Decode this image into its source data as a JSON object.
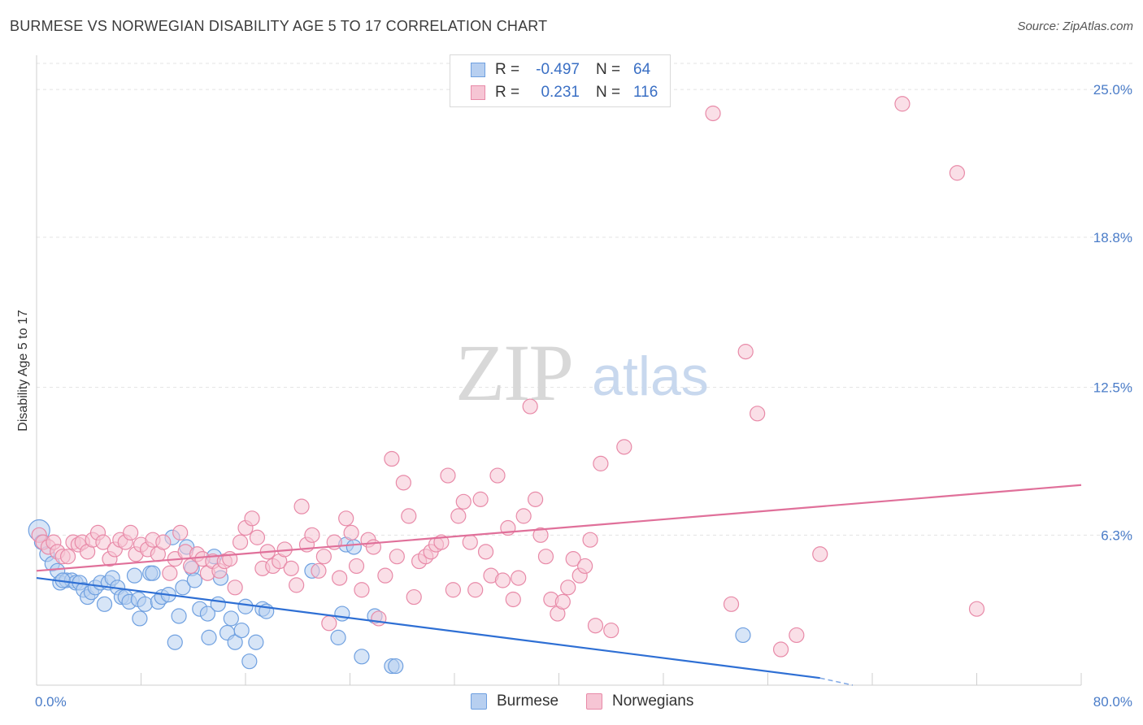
{
  "title": "BURMESE VS NORWEGIAN DISABILITY AGE 5 TO 17 CORRELATION CHART",
  "source": "Source: ZipAtlas.com",
  "watermark": {
    "zip": "ZIP",
    "atlas": "atlas"
  },
  "legend": {
    "rows": [
      {
        "r_label": "R =",
        "r_value": "-0.497",
        "n_label": "N =",
        "n_value": "64",
        "color": "#6fa0e0",
        "fill": "#b7cff0"
      },
      {
        "r_label": "R =",
        "r_value": "0.231",
        "n_label": "N =",
        "n_value": "116",
        "color": "#e88aa8",
        "fill": "#f6c5d4"
      }
    ]
  },
  "bottom_legend": [
    {
      "label": "Burmese",
      "color": "#6fa0e0",
      "fill": "#b7cff0"
    },
    {
      "label": "Norwegians",
      "color": "#e88aa8",
      "fill": "#f6c5d4"
    }
  ],
  "chart_data": {
    "type": "scatter",
    "title": "BURMESE VS NORWEGIAN DISABILITY AGE 5 TO 17 CORRELATION CHART",
    "xlabel": "",
    "ylabel": "Disability Age 5 to 17",
    "xlim": [
      0,
      80
    ],
    "ylim": [
      0,
      26.2
    ],
    "x_tick_labels": [
      "0.0%",
      "80.0%"
    ],
    "y_ticks": [
      6.3,
      12.5,
      18.8,
      25.0
    ],
    "y_tick_labels": [
      "6.3%",
      "12.5%",
      "18.8%",
      "25.0%"
    ],
    "grid": "horizontal dashed",
    "legend_position": "top-center",
    "series": [
      {
        "name": "Burmese",
        "color": "#6fa0e0",
        "fill": "#b7cff0",
        "trend": {
          "x": [
            0,
            60.0
          ],
          "y": [
            4.5,
            0.3
          ],
          "color": "#2e6fd4"
        },
        "points": [
          [
            0.2,
            6.5
          ],
          [
            0.4,
            6.0
          ],
          [
            0.8,
            5.5
          ],
          [
            1.2,
            5.1
          ],
          [
            1.6,
            4.8
          ],
          [
            1.8,
            4.3
          ],
          [
            2.3,
            4.4
          ],
          [
            2.7,
            4.4
          ],
          [
            3.0,
            4.3
          ],
          [
            3.3,
            4.3
          ],
          [
            3.6,
            4.0
          ],
          [
            3.9,
            3.7
          ],
          [
            4.2,
            3.9
          ],
          [
            4.5,
            4.1
          ],
          [
            4.9,
            4.3
          ],
          [
            5.2,
            3.4
          ],
          [
            5.5,
            4.3
          ],
          [
            5.8,
            4.5
          ],
          [
            6.2,
            4.1
          ],
          [
            6.5,
            3.7
          ],
          [
            6.8,
            3.7
          ],
          [
            7.1,
            3.5
          ],
          [
            7.5,
            4.6
          ],
          [
            7.8,
            3.6
          ],
          [
            7.9,
            2.8
          ],
          [
            8.3,
            3.4
          ],
          [
            8.7,
            4.7
          ],
          [
            8.9,
            4.7
          ],
          [
            9.3,
            3.5
          ],
          [
            9.6,
            3.7
          ],
          [
            10.1,
            3.8
          ],
          [
            10.4,
            6.2
          ],
          [
            10.6,
            1.8
          ],
          [
            10.9,
            2.9
          ],
          [
            11.2,
            4.1
          ],
          [
            11.5,
            5.8
          ],
          [
            11.9,
            4.9
          ],
          [
            12.1,
            4.4
          ],
          [
            12.5,
            3.2
          ],
          [
            13.1,
            3.0
          ],
          [
            13.2,
            2.0
          ],
          [
            13.6,
            5.4
          ],
          [
            13.9,
            3.4
          ],
          [
            14.1,
            4.5
          ],
          [
            14.6,
            2.2
          ],
          [
            14.9,
            2.8
          ],
          [
            15.2,
            1.8
          ],
          [
            15.7,
            2.3
          ],
          [
            16.0,
            3.3
          ],
          [
            16.3,
            1.0
          ],
          [
            16.8,
            1.8
          ],
          [
            17.3,
            3.2
          ],
          [
            17.6,
            3.1
          ],
          [
            21.1,
            4.8
          ],
          [
            23.1,
            2.0
          ],
          [
            23.4,
            3.0
          ],
          [
            23.7,
            5.9
          ],
          [
            24.3,
            5.8
          ],
          [
            24.9,
            1.2
          ],
          [
            25.9,
            2.9
          ],
          [
            27.2,
            0.8
          ],
          [
            27.5,
            0.8
          ],
          [
            54.1,
            2.1
          ],
          [
            2.0,
            4.4
          ]
        ]
      },
      {
        "name": "Norwegians",
        "color": "#e88aa8",
        "fill": "#f6c5d4",
        "trend": {
          "x": [
            0,
            80.0
          ],
          "y": [
            4.8,
            8.4
          ],
          "color": "#e0709a"
        },
        "points": [
          [
            0.2,
            6.3
          ],
          [
            0.5,
            6.0
          ],
          [
            0.9,
            5.8
          ],
          [
            1.3,
            6.0
          ],
          [
            1.6,
            5.6
          ],
          [
            2.0,
            5.4
          ],
          [
            2.4,
            5.4
          ],
          [
            2.8,
            6.0
          ],
          [
            3.2,
            5.9
          ],
          [
            3.5,
            6.0
          ],
          [
            3.9,
            5.6
          ],
          [
            4.3,
            6.1
          ],
          [
            4.7,
            6.4
          ],
          [
            5.1,
            6.0
          ],
          [
            5.6,
            5.3
          ],
          [
            6.0,
            5.7
          ],
          [
            6.4,
            6.1
          ],
          [
            6.8,
            6.0
          ],
          [
            7.2,
            6.4
          ],
          [
            7.6,
            5.5
          ],
          [
            8.0,
            5.9
          ],
          [
            8.5,
            5.7
          ],
          [
            8.9,
            6.1
          ],
          [
            9.3,
            5.5
          ],
          [
            9.7,
            6.0
          ],
          [
            10.2,
            4.7
          ],
          [
            10.6,
            5.3
          ],
          [
            11.0,
            6.4
          ],
          [
            11.4,
            5.6
          ],
          [
            11.8,
            5.0
          ],
          [
            12.3,
            5.5
          ],
          [
            12.7,
            5.3
          ],
          [
            13.1,
            4.7
          ],
          [
            13.5,
            5.2
          ],
          [
            14.0,
            4.8
          ],
          [
            14.4,
            5.2
          ],
          [
            14.8,
            5.3
          ],
          [
            15.2,
            4.1
          ],
          [
            15.6,
            6.0
          ],
          [
            16.0,
            6.6
          ],
          [
            16.5,
            7.0
          ],
          [
            16.9,
            6.2
          ],
          [
            17.3,
            4.9
          ],
          [
            17.7,
            5.6
          ],
          [
            18.1,
            5.0
          ],
          [
            18.6,
            5.2
          ],
          [
            19.0,
            5.7
          ],
          [
            19.5,
            4.9
          ],
          [
            19.9,
            4.2
          ],
          [
            20.3,
            7.5
          ],
          [
            20.7,
            5.9
          ],
          [
            21.1,
            6.3
          ],
          [
            21.6,
            4.8
          ],
          [
            22.0,
            5.4
          ],
          [
            22.4,
            2.6
          ],
          [
            22.8,
            6.0
          ],
          [
            23.2,
            4.5
          ],
          [
            23.7,
            7.0
          ],
          [
            24.1,
            6.4
          ],
          [
            24.5,
            5.0
          ],
          [
            24.9,
            4.0
          ],
          [
            25.4,
            6.1
          ],
          [
            25.8,
            5.8
          ],
          [
            26.2,
            2.8
          ],
          [
            26.7,
            4.6
          ],
          [
            27.2,
            9.5
          ],
          [
            27.6,
            5.4
          ],
          [
            28.1,
            8.5
          ],
          [
            28.5,
            7.1
          ],
          [
            28.9,
            3.7
          ],
          [
            29.3,
            5.2
          ],
          [
            29.8,
            5.4
          ],
          [
            30.2,
            5.6
          ],
          [
            30.6,
            5.9
          ],
          [
            31.0,
            6.0
          ],
          [
            31.5,
            8.8
          ],
          [
            31.9,
            4.0
          ],
          [
            32.3,
            7.1
          ],
          [
            32.7,
            7.7
          ],
          [
            33.2,
            6.0
          ],
          [
            33.6,
            4.0
          ],
          [
            34.0,
            7.8
          ],
          [
            34.4,
            5.6
          ],
          [
            34.8,
            4.6
          ],
          [
            35.3,
            8.8
          ],
          [
            35.7,
            4.4
          ],
          [
            36.1,
            6.6
          ],
          [
            36.5,
            3.6
          ],
          [
            36.9,
            4.5
          ],
          [
            37.3,
            7.1
          ],
          [
            37.8,
            11.7
          ],
          [
            38.2,
            7.8
          ],
          [
            38.6,
            6.3
          ],
          [
            39.0,
            5.4
          ],
          [
            39.4,
            3.6
          ],
          [
            39.9,
            3.0
          ],
          [
            40.3,
            3.5
          ],
          [
            40.7,
            4.1
          ],
          [
            41.1,
            5.3
          ],
          [
            41.6,
            4.6
          ],
          [
            42.0,
            5.0
          ],
          [
            42.4,
            6.1
          ],
          [
            42.8,
            2.5
          ],
          [
            43.2,
            9.3
          ],
          [
            44.0,
            2.3
          ],
          [
            45.0,
            10.0
          ],
          [
            51.8,
            24.0
          ],
          [
            54.3,
            14.0
          ],
          [
            55.2,
            11.4
          ],
          [
            60.0,
            5.5
          ],
          [
            66.3,
            24.4
          ],
          [
            70.5,
            21.5
          ],
          [
            72.0,
            3.2
          ],
          [
            53.2,
            3.4
          ],
          [
            57.0,
            1.5
          ],
          [
            58.2,
            2.1
          ]
        ]
      }
    ]
  }
}
